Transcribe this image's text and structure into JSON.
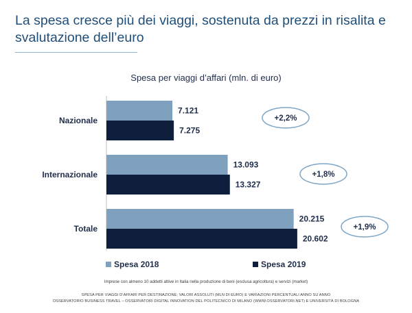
{
  "header": {
    "title_line1": "La spesa cresce più dei viaggi, sostenuta da prezzi in risalita e",
    "title_line2": "svalutazione dell’euro"
  },
  "chart_data": {
    "type": "bar",
    "orientation": "horizontal",
    "title": "Spesa per viaggi d’affari (mln. di euro)",
    "categories": [
      "Nazionale",
      "Internazionale",
      "Totale"
    ],
    "series": [
      {
        "name": "Spesa 2018",
        "values": [
          7121,
          13093,
          20215
        ],
        "labels": [
          "7.121",
          "13.093",
          "20.215"
        ],
        "color": "#7fa1bf"
      },
      {
        "name": "Spesa 2019",
        "values": [
          7275,
          13327,
          20602
        ],
        "labels": [
          "7.275",
          "13.327",
          "20.602"
        ],
        "color": "#0d1f3c"
      }
    ],
    "changes": [
      "+2,2%",
      "+1,8%",
      "+1,9%"
    ],
    "xlim": [
      0,
      21500
    ],
    "legend": "bottom",
    "grid": false
  },
  "notes": {
    "sample": "Imprese con almeno 10 addetti attive in Italia nella produzione di beni (esclusa agricoltura) e servizi (market)",
    "footer_line1": "SPESA PER VIAGGI D’AFFARI PER DESTINAZIONE; VALORI ASSOLUTI (MLN DI EURO) E VARIAZIONI PERCENTUALI ANNO SU ANNO",
    "footer_line2": "OSSERVATORIO BUSINESS TRAVEL – OSSERVATORI DIGITAL INNOVATION DEL POLITECNICO DI MILANO (WWW.OSSERVATORI.NET) E UNIVERSITÀ DI BOLOGNA"
  }
}
